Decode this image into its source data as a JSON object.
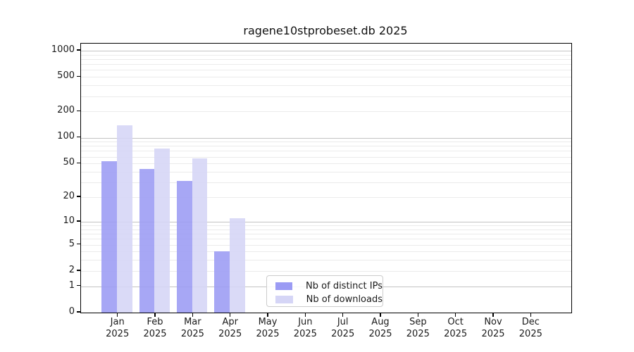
{
  "title": "ragene10stprobeset.db 2025",
  "chart_data": {
    "type": "bar",
    "title": "ragene10stprobeset.db 2025",
    "categories": [
      "Jan",
      "Feb",
      "Mar",
      "Apr",
      "May",
      "Jun",
      "Jul",
      "Aug",
      "Sep",
      "Oct",
      "Nov",
      "Dec"
    ],
    "year": "2025",
    "series": [
      {
        "name": "Nb of distinct IPs",
        "color": "#9b9bf4",
        "perceived_color": "#a7a7f5",
        "values": [
          53,
          43,
          31,
          4,
          0,
          0,
          0,
          0,
          0,
          0,
          0,
          0
        ]
      },
      {
        "name": "Nb of downloads",
        "color": "#d5d5f6",
        "perceived_color": "#dadaf7",
        "values": [
          138,
          75,
          57,
          11,
          0,
          0,
          0,
          0,
          0,
          0,
          0,
          0
        ]
      }
    ],
    "xlabel": "",
    "ylabel": "",
    "yscale": "log1p",
    "yticks": [
      0,
      1,
      2,
      5,
      10,
      20,
      50,
      100,
      200,
      500,
      1000
    ],
    "major_gridlines": [
      1,
      10,
      100,
      1000
    ],
    "ylim": [
      0,
      1200
    ],
    "grid": true,
    "legend_position": "lower center"
  },
  "legend": {
    "items": [
      {
        "label": "Nb of distinct IPs"
      },
      {
        "label": "Nb of downloads"
      }
    ]
  }
}
